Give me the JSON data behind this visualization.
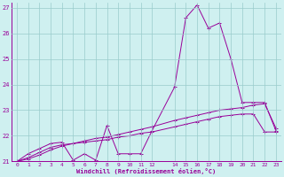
{
  "xlabel": "Windchill (Refroidissement éolien,°C)",
  "bg_color": "#cff0f0",
  "grid_color": "#99cccc",
  "line_color": "#990099",
  "xlim": [
    -0.5,
    23.5
  ],
  "ylim": [
    21.0,
    27.2
  ],
  "xticks": [
    0,
    1,
    2,
    3,
    4,
    5,
    6,
    7,
    8,
    9,
    10,
    11,
    12,
    14,
    15,
    16,
    17,
    18,
    19,
    20,
    21,
    22,
    23
  ],
  "yticks": [
    21,
    22,
    23,
    24,
    25,
    26,
    27
  ],
  "curve1_x": [
    0,
    1,
    2,
    3,
    4,
    5,
    6,
    7,
    8,
    9,
    10,
    11,
    12,
    14,
    15,
    16,
    17,
    18,
    19,
    20,
    21,
    22,
    23
  ],
  "curve1_y": [
    21.0,
    21.3,
    21.5,
    21.7,
    21.75,
    21.05,
    21.3,
    21.05,
    22.4,
    21.3,
    21.3,
    21.3,
    22.2,
    23.9,
    26.6,
    27.1,
    26.2,
    26.4,
    25.0,
    23.3,
    23.3,
    23.3,
    22.2
  ],
  "curve2_x": [
    0,
    1,
    2,
    3,
    4,
    5,
    6,
    7,
    8,
    9,
    10,
    11,
    12,
    14,
    15,
    16,
    17,
    18,
    19,
    20,
    21,
    22,
    23
  ],
  "curve2_y": [
    21.0,
    21.15,
    21.35,
    21.55,
    21.65,
    21.7,
    21.75,
    21.8,
    21.85,
    21.95,
    22.0,
    22.1,
    22.15,
    22.35,
    22.45,
    22.55,
    22.65,
    22.75,
    22.8,
    22.85,
    22.85,
    22.15,
    22.15
  ],
  "curve3_x": [
    0,
    1,
    2,
    3,
    4,
    5,
    6,
    7,
    8,
    9,
    10,
    11,
    12,
    14,
    15,
    16,
    17,
    18,
    19,
    20,
    21,
    22,
    23
  ],
  "curve3_y": [
    21.0,
    21.1,
    21.25,
    21.45,
    21.6,
    21.7,
    21.8,
    21.9,
    21.95,
    22.05,
    22.15,
    22.25,
    22.35,
    22.6,
    22.7,
    22.8,
    22.9,
    23.0,
    23.05,
    23.1,
    23.2,
    23.25,
    22.3
  ]
}
